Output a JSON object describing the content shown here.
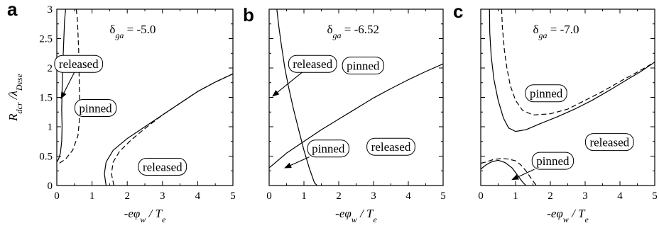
{
  "figure": {
    "ylabel": "R_dcr / λ_Dese",
    "xlabel": "-eφ_w / T_e"
  },
  "chart_data": [
    {
      "type": "line",
      "panel": "a",
      "annotation": "δga = -5.0",
      "annotation_value": "-5.0",
      "xlim": [
        0,
        5
      ],
      "ylim": [
        0,
        3
      ],
      "xticks": [
        "0",
        "1",
        "2",
        "3",
        "4",
        "5"
      ],
      "yticks": [
        "0",
        "0.5",
        "1",
        "1.5",
        "2",
        "2.5",
        "3"
      ],
      "labels": [
        {
          "text": "released",
          "x": 0.62,
          "y": 2.07,
          "arrow_to": {
            "x": 0.12,
            "y": 1.48
          }
        },
        {
          "text": "pinned",
          "x": 1.1,
          "y": 1.32,
          "arrow_to": null
        },
        {
          "text": "released",
          "x": 3.0,
          "y": 0.32,
          "arrow_to": null
        }
      ],
      "series": [
        {
          "style": "solid",
          "points": [
            [
              0.25,
              3.0
            ],
            [
              0.22,
              2.8
            ],
            [
              0.2,
              2.5
            ],
            [
              0.18,
              2.2
            ],
            [
              0.16,
              1.9
            ],
            [
              0.15,
              1.6
            ],
            [
              0.14,
              1.3
            ],
            [
              0.15,
              1.0
            ],
            [
              0.14,
              0.75
            ],
            [
              0.1,
              0.55
            ],
            [
              0.05,
              0.45
            ],
            [
              0.0,
              0.4
            ]
          ]
        },
        {
          "style": "dashed",
          "points": [
            [
              0.55,
              3.0
            ],
            [
              0.58,
              2.85
            ],
            [
              0.6,
              2.6
            ],
            [
              0.62,
              2.3
            ],
            [
              0.63,
              2.0
            ],
            [
              0.64,
              1.7
            ],
            [
              0.65,
              1.4
            ],
            [
              0.64,
              1.1
            ],
            [
              0.6,
              0.85
            ],
            [
              0.45,
              0.6
            ],
            [
              0.25,
              0.45
            ],
            [
              0.0,
              0.35
            ]
          ]
        },
        {
          "style": "solid",
          "points": [
            [
              1.4,
              0.0
            ],
            [
              1.35,
              0.2
            ],
            [
              1.4,
              0.4
            ],
            [
              1.6,
              0.6
            ],
            [
              2.0,
              0.8
            ],
            [
              2.5,
              1.0
            ],
            [
              3.0,
              1.2
            ],
            [
              3.5,
              1.4
            ],
            [
              4.0,
              1.6
            ],
            [
              4.5,
              1.76
            ],
            [
              5.0,
              1.9
            ]
          ]
        },
        {
          "style": "dashed",
          "points": [
            [
              1.62,
              0.0
            ],
            [
              1.55,
              0.2
            ],
            [
              1.6,
              0.4
            ],
            [
              1.78,
              0.58
            ],
            [
              2.1,
              0.77
            ],
            [
              2.5,
              0.97
            ],
            [
              3.0,
              1.2
            ],
            [
              3.5,
              1.4
            ],
            [
              4.0,
              1.6
            ],
            [
              4.5,
              1.76
            ],
            [
              5.0,
              1.9
            ]
          ]
        }
      ]
    },
    {
      "type": "line",
      "panel": "b",
      "annotation": "δga = -6.52",
      "annotation_value": "-6.52",
      "xlim": [
        0,
        5
      ],
      "ylim": [
        0,
        3
      ],
      "xticks": [
        "0",
        "1",
        "2",
        "3",
        "4",
        "5"
      ],
      "yticks": [
        "0",
        "0.5",
        "1",
        "1.5",
        "2",
        "2.5",
        "3"
      ],
      "labels": [
        {
          "text": "released",
          "x": 1.25,
          "y": 2.07,
          "arrow_to": {
            "x": 0.1,
            "y": 1.52
          }
        },
        {
          "text": "pinned",
          "x": 2.7,
          "y": 2.04,
          "arrow_to": null
        },
        {
          "text": "pinned",
          "x": 1.7,
          "y": 0.63,
          "arrow_to": {
            "x": 0.45,
            "y": 0.3
          }
        },
        {
          "text": "released",
          "x": 3.5,
          "y": 0.66,
          "arrow_to": null
        }
      ],
      "series": [
        {
          "style": "solid",
          "points": [
            [
              0.22,
              3.0
            ],
            [
              0.28,
              2.7
            ],
            [
              0.35,
              2.4
            ],
            [
              0.45,
              2.0
            ],
            [
              0.55,
              1.7
            ],
            [
              0.7,
              1.3
            ],
            [
              0.85,
              0.95
            ],
            [
              1.0,
              0.6
            ],
            [
              1.15,
              0.3
            ],
            [
              1.3,
              0.05
            ],
            [
              1.38,
              0.0
            ]
          ]
        },
        {
          "style": "solid",
          "points": [
            [
              0.0,
              0.3
            ],
            [
              0.5,
              0.55
            ],
            [
              1.0,
              0.75
            ],
            [
              1.5,
              0.95
            ],
            [
              2.0,
              1.13
            ],
            [
              2.5,
              1.31
            ],
            [
              3.0,
              1.49
            ],
            [
              3.5,
              1.65
            ],
            [
              4.0,
              1.8
            ],
            [
              4.5,
              1.94
            ],
            [
              5.0,
              2.07
            ]
          ]
        }
      ]
    },
    {
      "type": "line",
      "panel": "c",
      "annotation": "δga = -7.0",
      "annotation_value": "-7.0",
      "xlim": [
        0,
        5
      ],
      "ylim": [
        0,
        3
      ],
      "xticks": [
        "0",
        "1",
        "2",
        "3",
        "4",
        "5"
      ],
      "yticks": [
        "0",
        "0.5",
        "1",
        "1.5",
        "2",
        "2.5",
        "3"
      ],
      "labels": [
        {
          "text": "pinned",
          "x": 1.88,
          "y": 1.57,
          "arrow_to": null
        },
        {
          "text": "released",
          "x": 3.7,
          "y": 0.74,
          "arrow_to": null
        },
        {
          "text": "pinned",
          "x": 2.07,
          "y": 0.42,
          "arrow_to": {
            "x": 0.9,
            "y": 0.1
          }
        }
      ],
      "series": [
        {
          "style": "solid",
          "points": [
            [
              0.25,
              3.0
            ],
            [
              0.26,
              2.6
            ],
            [
              0.3,
              2.2
            ],
            [
              0.38,
              1.8
            ],
            [
              0.5,
              1.45
            ],
            [
              0.65,
              1.15
            ],
            [
              0.8,
              0.98
            ],
            [
              1.0,
              0.92
            ],
            [
              1.3,
              0.95
            ],
            [
              1.7,
              1.05
            ],
            [
              2.2,
              1.17
            ],
            [
              2.7,
              1.3
            ],
            [
              3.2,
              1.45
            ],
            [
              3.7,
              1.62
            ],
            [
              4.2,
              1.8
            ],
            [
              4.6,
              1.94
            ],
            [
              5.0,
              2.1
            ]
          ]
        },
        {
          "style": "dashed",
          "points": [
            [
              0.6,
              3.0
            ],
            [
              0.62,
              2.7
            ],
            [
              0.68,
              2.3
            ],
            [
              0.75,
              2.0
            ],
            [
              0.85,
              1.7
            ],
            [
              1.0,
              1.45
            ],
            [
              1.2,
              1.28
            ],
            [
              1.5,
              1.2
            ],
            [
              2.0,
              1.22
            ],
            [
              2.5,
              1.3
            ],
            [
              3.0,
              1.45
            ],
            [
              3.5,
              1.6
            ],
            [
              4.0,
              1.77
            ],
            [
              4.5,
              1.93
            ],
            [
              5.0,
              2.1
            ]
          ]
        },
        {
          "style": "solid",
          "points": [
            [
              0.0,
              0.28
            ],
            [
              0.15,
              0.35
            ],
            [
              0.3,
              0.4
            ],
            [
              0.5,
              0.43
            ],
            [
              0.7,
              0.39
            ],
            [
              0.9,
              0.3
            ],
            [
              1.05,
              0.18
            ],
            [
              1.2,
              0.06
            ],
            [
              1.3,
              0.0
            ]
          ]
        },
        {
          "style": "dashed",
          "points": [
            [
              0.0,
              0.38
            ],
            [
              0.15,
              0.4
            ],
            [
              0.35,
              0.44
            ],
            [
              0.6,
              0.46
            ],
            [
              0.8,
              0.45
            ],
            [
              1.0,
              0.42
            ],
            [
              1.15,
              0.35
            ],
            [
              1.3,
              0.25
            ],
            [
              1.45,
              0.12
            ],
            [
              1.6,
              0.0
            ]
          ]
        }
      ]
    }
  ]
}
